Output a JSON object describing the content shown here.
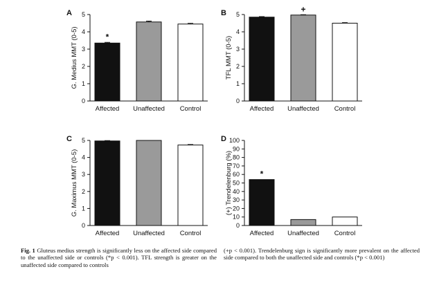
{
  "chart_data": [
    {
      "panel": "A",
      "type": "bar",
      "ylabel": "G. Medius MMT (0-5)",
      "ylim": [
        0,
        5
      ],
      "yticks": [
        0,
        1,
        2,
        3,
        4,
        5
      ],
      "categories": [
        "Affected",
        "Unaffected",
        "Control"
      ],
      "values": [
        3.35,
        4.57,
        4.45
      ],
      "errors": [
        0.04,
        0.05,
        0.04
      ],
      "bar_colors": [
        "#111111",
        "#9a9a9a",
        "#ffffff"
      ],
      "annotations": [
        {
          "category": "Affected",
          "text": "*"
        }
      ]
    },
    {
      "panel": "B",
      "type": "bar",
      "ylabel": "TFL MMT (0-5)",
      "ylim": [
        0,
        5
      ],
      "yticks": [
        0,
        1,
        2,
        3,
        4,
        5
      ],
      "categories": [
        "Affected",
        "Unaffected",
        "Control"
      ],
      "values": [
        4.85,
        4.97,
        4.5
      ],
      "errors": [
        0.03,
        0.02,
        0.03
      ],
      "bar_colors": [
        "#111111",
        "#9a9a9a",
        "#ffffff"
      ],
      "annotations": [
        {
          "category": "Unaffected",
          "text": "+"
        }
      ]
    },
    {
      "panel": "C",
      "type": "bar",
      "ylabel": "G. Maximus MMT (0-5)",
      "ylim": [
        0,
        5
      ],
      "yticks": [
        0,
        1,
        2,
        3,
        4,
        5
      ],
      "categories": [
        "Affected",
        "Unaffected",
        "Control"
      ],
      "values": [
        4.97,
        5.0,
        4.73
      ],
      "errors": [
        0.02,
        0.0,
        0.03
      ],
      "bar_colors": [
        "#111111",
        "#9a9a9a",
        "#ffffff"
      ],
      "annotations": []
    },
    {
      "panel": "D",
      "type": "bar",
      "ylabel": "(+) Trendelenburg (%)",
      "ylim": [
        0,
        100
      ],
      "yticks": [
        0,
        10,
        20,
        30,
        40,
        50,
        60,
        70,
        80,
        90,
        100
      ],
      "categories": [
        "Affected",
        "Unaffected",
        "Control"
      ],
      "values": [
        54,
        7,
        10
      ],
      "errors": [
        0,
        0,
        0
      ],
      "bar_colors": [
        "#111111",
        "#9a9a9a",
        "#ffffff"
      ],
      "annotations": [
        {
          "category": "Affected",
          "text": "*"
        }
      ]
    }
  ],
  "caption": {
    "figure_label": "Fig. 1",
    "left_text": "Gluteus medius strength is significantly less on the affected side compared to the unaffected side or controls (*p < 0.001). TFL strength is greater on the unaffected side compared to controls",
    "right_text": "(+p < 0.001). Trendelenburg sign is significantly more prevalent on the affected side compared to both the unaffected side and controls (*p < 0.001)"
  }
}
